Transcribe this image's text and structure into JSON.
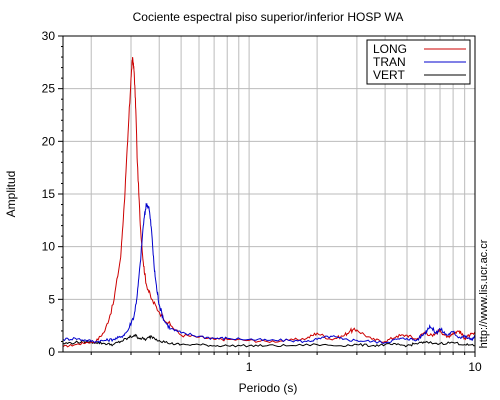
{
  "chart_data": {
    "type": "line",
    "title": "Cociente espectral piso superior/inferior  HOSP WA",
    "xlabel": "Periodo (s)",
    "ylabel": "Amplitud",
    "x_scale": "log",
    "xlim": [
      0.15,
      10
    ],
    "ylim": [
      0,
      30
    ],
    "grid": true,
    "x_ticks": [
      {
        "value": 1,
        "label": "1"
      },
      {
        "value": 10,
        "label": "10"
      }
    ],
    "y_ticks": [
      0,
      5,
      10,
      15,
      20,
      25,
      30
    ],
    "legend_position": "top-right",
    "annotation": "http://www.lis.ucr.ac.cr",
    "series": [
      {
        "name": "LONG",
        "color": "#cc0000",
        "x": [
          0.15,
          0.17,
          0.19,
          0.21,
          0.23,
          0.25,
          0.27,
          0.28,
          0.29,
          0.3,
          0.305,
          0.31,
          0.315,
          0.32,
          0.33,
          0.34,
          0.35,
          0.37,
          0.4,
          0.45,
          0.5,
          0.6,
          0.7,
          0.8,
          1.0,
          1.2,
          1.5,
          1.8,
          2.0,
          2.3,
          2.6,
          2.8,
          3.0,
          3.5,
          4.0,
          4.5,
          5.0,
          5.5,
          6.0,
          6.5,
          7.0,
          7.5,
          8.0,
          8.5,
          9.0,
          9.5,
          10.0
        ],
        "values": [
          0.5,
          0.7,
          0.9,
          1.0,
          2.0,
          4.5,
          9.0,
          14.0,
          20.0,
          26.0,
          28.0,
          26.5,
          23.0,
          18.0,
          12.0,
          8.5,
          6.5,
          5.0,
          3.8,
          2.5,
          1.6,
          1.4,
          1.2,
          1.2,
          1.1,
          1.0,
          1.1,
          1.3,
          1.8,
          1.2,
          1.5,
          2.0,
          2.1,
          1.2,
          1.0,
          1.5,
          1.6,
          1.2,
          1.9,
          1.5,
          2.1,
          1.4,
          1.8,
          2.0,
          1.3,
          1.6,
          1.7
        ]
      },
      {
        "name": "TRAN",
        "color": "#0000cc",
        "x": [
          0.15,
          0.17,
          0.19,
          0.21,
          0.23,
          0.25,
          0.27,
          0.29,
          0.31,
          0.32,
          0.33,
          0.34,
          0.35,
          0.36,
          0.37,
          0.38,
          0.39,
          0.4,
          0.42,
          0.45,
          0.5,
          0.6,
          0.7,
          0.8,
          1.0,
          1.2,
          1.5,
          1.8,
          2.0,
          2.3,
          2.6,
          3.0,
          3.5,
          4.0,
          4.5,
          5.0,
          5.5,
          6.0,
          6.3,
          6.7,
          7.0,
          7.5,
          8.0,
          8.5,
          9.0,
          9.5,
          10.0
        ],
        "values": [
          1.2,
          1.3,
          1.1,
          1.0,
          1.1,
          1.2,
          1.4,
          2.0,
          3.5,
          5.5,
          8.5,
          12.0,
          14.0,
          13.8,
          11.5,
          8.0,
          6.0,
          4.5,
          3.0,
          2.2,
          1.8,
          1.5,
          1.3,
          1.3,
          1.2,
          1.1,
          1.1,
          1.0,
          1.2,
          1.5,
          1.2,
          1.1,
          1.0,
          0.9,
          1.2,
          1.3,
          1.1,
          1.8,
          2.5,
          1.8,
          2.2,
          1.6,
          1.9,
          1.4,
          1.5,
          1.2,
          1.4
        ]
      },
      {
        "name": "VERT",
        "color": "#000000",
        "x": [
          0.15,
          0.17,
          0.19,
          0.21,
          0.23,
          0.25,
          0.27,
          0.29,
          0.31,
          0.33,
          0.35,
          0.37,
          0.4,
          0.45,
          0.5,
          0.6,
          0.7,
          0.8,
          1.0,
          1.2,
          1.5,
          2.0,
          2.5,
          3.0,
          3.5,
          4.0,
          4.5,
          5.0,
          5.5,
          6.0,
          7.0,
          8.0,
          9.0,
          10.0
        ],
        "values": [
          0.8,
          0.9,
          1.0,
          0.9,
          0.8,
          0.7,
          1.0,
          1.3,
          1.6,
          1.3,
          1.2,
          1.5,
          1.1,
          0.8,
          0.7,
          0.7,
          0.6,
          0.6,
          0.6,
          0.6,
          0.6,
          0.7,
          0.6,
          0.7,
          0.6,
          0.7,
          0.7,
          0.6,
          0.8,
          0.9,
          0.8,
          0.9,
          0.7,
          0.6
        ]
      }
    ]
  }
}
